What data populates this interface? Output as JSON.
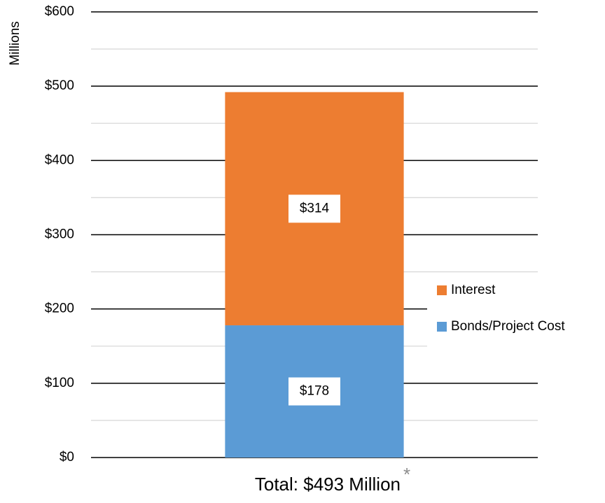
{
  "chart_data": {
    "type": "stacked_bar",
    "y_label": "Millions",
    "x_label": "Total: $493 Million",
    "annotation": "*",
    "categories": [
      null
    ],
    "series": [
      {
        "name": "Bonds/Project Cost",
        "color": "#5b9bd5",
        "values": [
          178
        ],
        "value_labels": [
          "$178"
        ]
      },
      {
        "name": "Interest",
        "color": "#ed7d31",
        "values": [
          314
        ],
        "value_labels": [
          "$314"
        ]
      }
    ],
    "ylim": [
      0,
      600
    ],
    "yticks": [
      {
        "value": 0,
        "label": "$0"
      },
      {
        "value": 100,
        "label": "$100"
      },
      {
        "value": 200,
        "label": "$200"
      },
      {
        "value": 300,
        "label": "$300"
      },
      {
        "value": 400,
        "label": "$400"
      },
      {
        "value": 500,
        "label": "$500"
      },
      {
        "value": 600,
        "label": "$600"
      }
    ],
    "minor_yticks": [
      50,
      150,
      250,
      350,
      450,
      550
    ],
    "grid": true,
    "legend": "right"
  }
}
